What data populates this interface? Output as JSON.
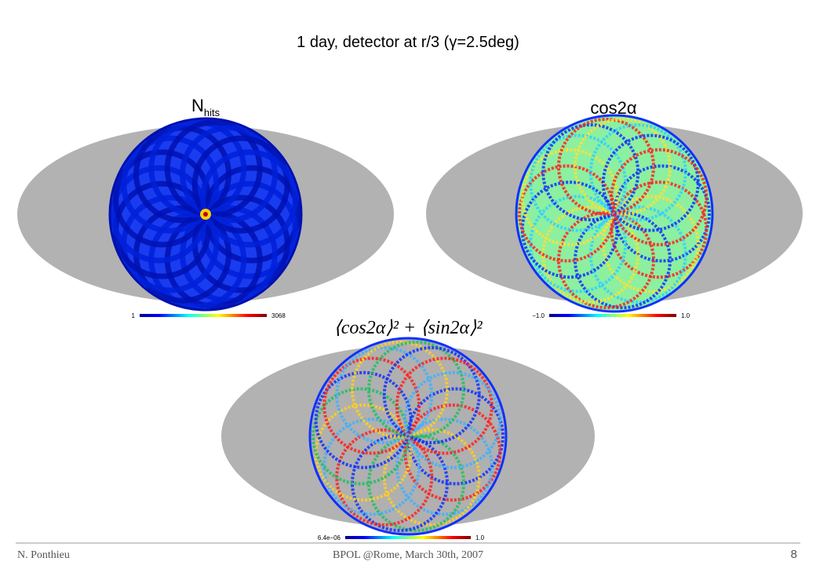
{
  "title": "1 day, detector at r/3 (γ=2.5deg)",
  "maps": [
    {
      "label": "N",
      "label_sub": "hits",
      "colorbar": {
        "min": "1",
        "max": "3068"
      }
    },
    {
      "label": "cos2α",
      "colorbar": {
        "min": "−1.0",
        "max": "1.0"
      }
    },
    {
      "label": "⟨cos2α⟩² + ⟨sin2α⟩²",
      "colorbar": {
        "min": "6.4e−06",
        "max": "1.0"
      }
    }
  ],
  "footer": {
    "author": "N. Ponthieu",
    "event": "BPOL @Rome, March 30th, 2007",
    "page": "8"
  }
}
